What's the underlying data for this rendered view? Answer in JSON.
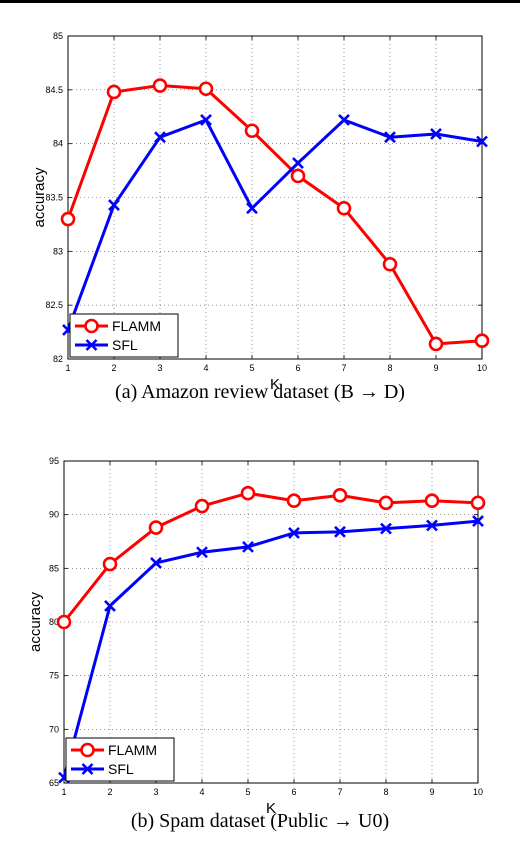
{
  "chart_data": [
    {
      "type": "line",
      "caption": "(a)  Amazon review dataset (B → D)",
      "xlabel": "K",
      "ylabel": "accuracy",
      "x": [
        1,
        2,
        3,
        4,
        5,
        6,
        7,
        8,
        9,
        10
      ],
      "xlim": [
        1,
        10
      ],
      "ylim": [
        82,
        85
      ],
      "yticks": [
        "82",
        "82.5",
        "83",
        "83.5",
        "84",
        "84.5",
        "85"
      ],
      "xticks": [
        "1",
        "2",
        "3",
        "4",
        "5",
        "6",
        "7",
        "8",
        "9",
        "10"
      ],
      "grid": true,
      "legend": "bottom-left",
      "series": [
        {
          "name": "FLAMM",
          "color": "#ff0000",
          "marker": "circle",
          "values": [
            83.3,
            84.48,
            84.54,
            84.51,
            84.12,
            83.7,
            83.4,
            82.88,
            82.14,
            82.17
          ]
        },
        {
          "name": "SFL",
          "color": "#0000ff",
          "marker": "x",
          "values": [
            82.27,
            83.43,
            84.06,
            84.22,
            83.4,
            83.82,
            84.22,
            84.06,
            84.09,
            84.02
          ]
        }
      ]
    },
    {
      "type": "line",
      "caption": "(b)  Spam dataset (Public → U0)",
      "xlabel": "K",
      "ylabel": "accuracy",
      "x": [
        1,
        2,
        3,
        4,
        5,
        6,
        7,
        8,
        9,
        10
      ],
      "xlim": [
        1,
        10
      ],
      "ylim": [
        65,
        95
      ],
      "yticks": [
        "65",
        "70",
        "75",
        "80",
        "85",
        "90",
        "95"
      ],
      "xticks": [
        "1",
        "2",
        "3",
        "4",
        "5",
        "6",
        "7",
        "8",
        "9",
        "10"
      ],
      "grid": true,
      "legend": "bottom-left",
      "series": [
        {
          "name": "FLAMM",
          "color": "#ff0000",
          "marker": "circle",
          "values": [
            80.0,
            85.4,
            88.8,
            90.8,
            92.0,
            91.3,
            91.8,
            91.1,
            91.3,
            91.1
          ]
        },
        {
          "name": "SFL",
          "color": "#0000ff",
          "marker": "x",
          "values": [
            65.5,
            81.5,
            85.5,
            86.5,
            87.0,
            88.3,
            88.4,
            88.7,
            89.0,
            89.4
          ]
        }
      ]
    }
  ]
}
